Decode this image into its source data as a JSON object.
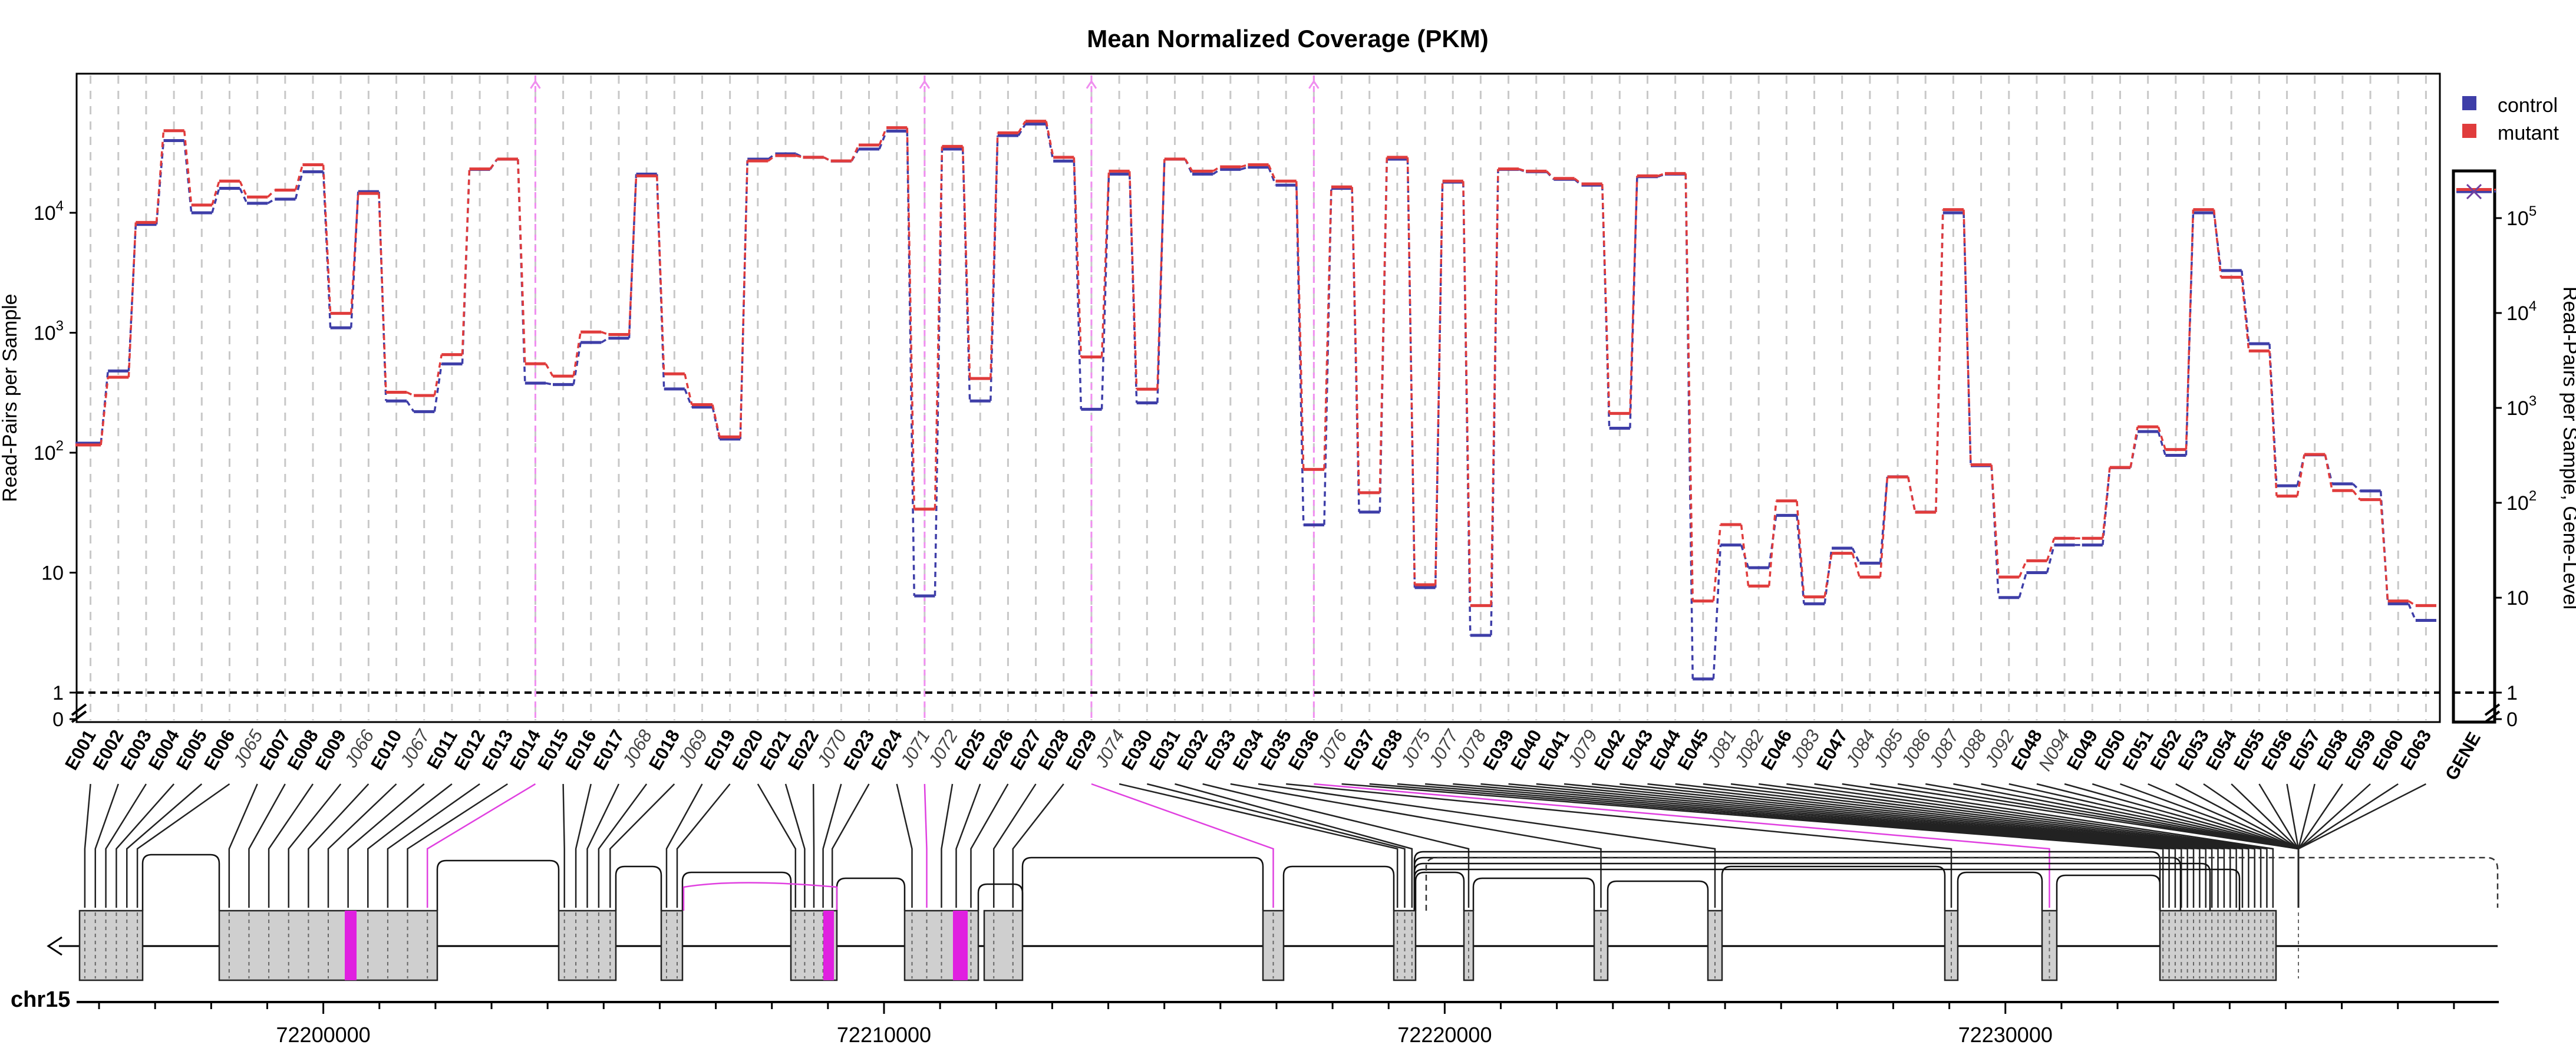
{
  "chart_data": {
    "type": "line",
    "title": "Mean Normalized Coverage (PKM)",
    "ylabel": "Read-Pairs per Sample",
    "ylabel_right": "Read-Pairs per Sample, Gene-Level",
    "yscale": "log",
    "ylim": [
      1,
      90000
    ],
    "grid": true,
    "legend_position": "top-right",
    "y_ticks": [
      "10^4",
      "10^3",
      "10^2",
      "10",
      "1",
      "0"
    ],
    "y_ticks_right": [
      "10^5",
      "10^4",
      "10^3",
      "10^2",
      "10",
      "1",
      "0"
    ],
    "categories": [
      "E001",
      "E002",
      "E003",
      "E004",
      "E005",
      "E006",
      "J065",
      "E007",
      "E008",
      "E009",
      "J066",
      "E010",
      "J067",
      "E011",
      "E012",
      "E013",
      "E014",
      "E015",
      "E016",
      "E017",
      "J068",
      "E018",
      "J069",
      "E019",
      "E020",
      "E021",
      "E022",
      "J070",
      "E023",
      "E024",
      "J071",
      "J072",
      "E025",
      "E026",
      "E027",
      "E028",
      "E029",
      "J074",
      "E030",
      "E031",
      "E032",
      "E033",
      "E034",
      "E035",
      "E036",
      "J076",
      "E037",
      "E038",
      "J075",
      "J077",
      "J078",
      "E039",
      "E040",
      "E041",
      "J079",
      "E042",
      "E043",
      "E044",
      "E045",
      "J081",
      "J082",
      "E046",
      "J083",
      "E047",
      "J084",
      "J085",
      "J086",
      "J087",
      "J088",
      "J092",
      "E048",
      "N094",
      "E049",
      "E050",
      "E051",
      "E052",
      "E053",
      "E054",
      "E055",
      "E056",
      "E057",
      "E058",
      "E059",
      "E060",
      "E063"
    ],
    "series": [
      {
        "name": "control",
        "color": "#3e3ea8",
        "values": [
          120,
          480,
          8000,
          40000,
          10000,
          16000,
          12000,
          13000,
          22000,
          1100,
          15000,
          270,
          220,
          550,
          23000,
          28000,
          380,
          370,
          830,
          900,
          21000,
          340,
          240,
          130,
          28000,
          31000,
          29000,
          27000,
          34000,
          48000,
          6.4,
          34000,
          270,
          44000,
          55000,
          27000,
          230,
          21000,
          260,
          28000,
          21000,
          23000,
          24000,
          17000,
          25,
          16000,
          32,
          28000,
          7.5,
          18000,
          3,
          23000,
          22000,
          19000,
          17000,
          160,
          20000,
          21000,
          1.3,
          17,
          11,
          30,
          5.5,
          16,
          12,
          63,
          32,
          10000,
          78,
          6.2,
          10,
          17,
          17,
          75,
          150,
          95,
          10000,
          3300,
          810,
          53,
          96,
          55,
          48,
          5.5,
          4
        ]
      },
      {
        "name": "mutant",
        "color": "#e03c3c",
        "values": [
          120,
          440,
          8600,
          50000,
          12000,
          19000,
          14000,
          16000,
          26000,
          1500,
          15000,
          330,
          310,
          680,
          24000,
          29000,
          570,
          450,
          1050,
          1000,
          21000,
          470,
          260,
          140,
          28000,
          31000,
          30000,
          28000,
          38000,
          53000,
          35,
          37000,
          430,
          48000,
          60000,
          30000,
          650,
          23000,
          350,
          29000,
          23000,
          25000,
          26000,
          19000,
          75,
          17000,
          48,
          30000,
          8.2,
          19000,
          5.5,
          24000,
          23000,
          20000,
          18000,
          220,
          21000,
          22000,
          6,
          26,
          8,
          41,
          6.5,
          15,
          9.5,
          65,
          33,
          11000,
          82,
          9.5,
          13,
          20,
          20,
          78,
          170,
          110,
          11000,
          3000,
          730,
          45,
          100,
          50,
          42,
          6,
          5.5
        ]
      }
    ],
    "gene_level": {
      "category": "GENE",
      "values": [
        {
          "name": "control",
          "value": 190000
        },
        {
          "name": "mutant",
          "value": 200000
        }
      ]
    },
    "genome_axis": {
      "chromosome": "chr15",
      "ticks": [
        "72200000",
        "72210000",
        "72220000",
        "72230000"
      ],
      "tick_values": [
        72200000,
        72210000,
        72220000,
        72230000
      ],
      "range": [
        72195600,
        72238800
      ]
    },
    "highlighted_junctions": [
      "E014",
      "J071",
      "E029",
      "E036"
    ]
  }
}
